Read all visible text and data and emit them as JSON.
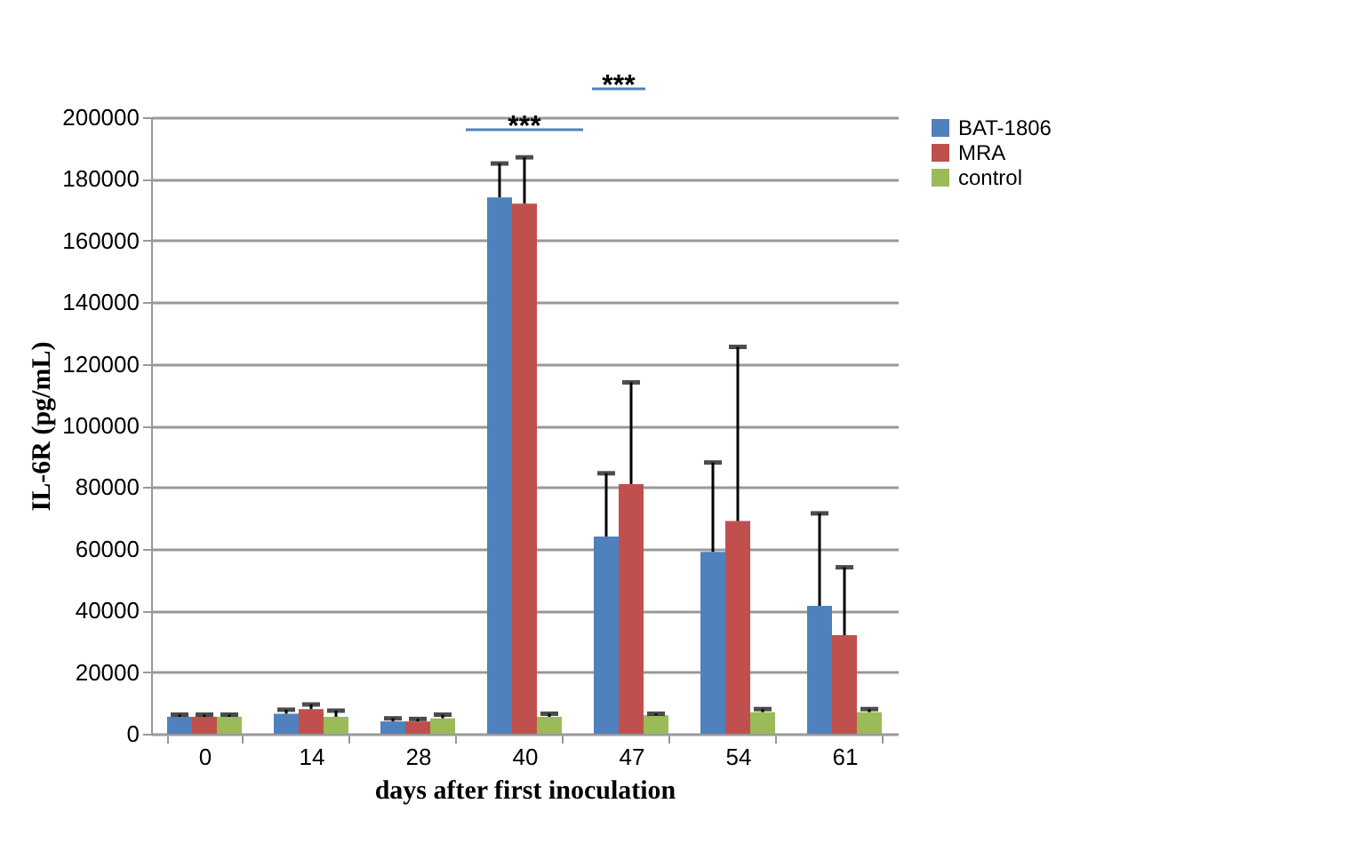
{
  "chart_data": {
    "type": "bar",
    "xlabel": "days after first inoculation",
    "ylabel": "IL-6R  (pg/mL)",
    "categories": [
      "0",
      "14",
      "28",
      "40",
      "47",
      "54",
      "61"
    ],
    "series": [
      {
        "name": "BAT-1806",
        "color": "#4f81bd",
        "values": [
          5500,
          6500,
          4000,
          174000,
          64000,
          59000,
          41500
        ],
        "errors": [
          [
            5500,
            6200
          ],
          [
            6500,
            7800
          ],
          [
            4000,
            5000
          ],
          [
            174000,
            185000
          ],
          [
            64000,
            84500
          ],
          [
            59000,
            88000
          ],
          [
            41500,
            71500
          ]
        ]
      },
      {
        "name": "MRA",
        "color": "#c0504d",
        "values": [
          5500,
          8000,
          4000,
          172000,
          81000,
          69000,
          32000
        ],
        "errors": [
          [
            5500,
            6200
          ],
          [
            8000,
            9500
          ],
          [
            4000,
            4800
          ],
          [
            172000,
            187000
          ],
          [
            81000,
            114000
          ],
          [
            69000,
            125500
          ],
          [
            32000,
            54000
          ]
        ]
      },
      {
        "name": "control",
        "color": "#9bbb59",
        "values": [
          5500,
          5500,
          5000,
          5500,
          6000,
          7000,
          7000
        ],
        "errors": [
          [
            5500,
            6200
          ],
          [
            5500,
            7500
          ],
          [
            5000,
            6200
          ],
          [
            5500,
            6500
          ],
          [
            6000,
            6500
          ],
          [
            7000,
            8000
          ],
          [
            7000,
            8000
          ]
        ]
      }
    ],
    "ylim": [
      0,
      200000
    ],
    "yticks": [
      0,
      20000,
      40000,
      60000,
      80000,
      100000,
      120000,
      140000,
      160000,
      180000,
      200000
    ],
    "grid": "y",
    "legend": "right",
    "annotations": [
      "***",
      "***"
    ]
  }
}
